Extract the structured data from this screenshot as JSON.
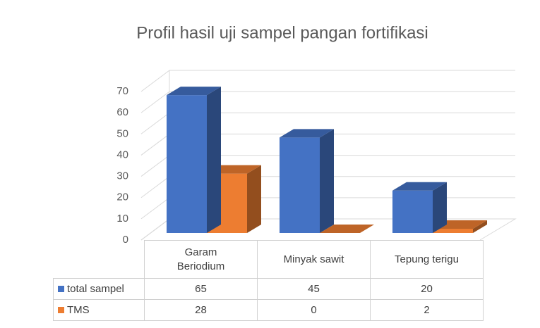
{
  "chart_data": {
    "type": "bar3d",
    "title": "Profil hasil uji sampel pangan fortifikasi",
    "categories": [
      "Garam Beriodium",
      "Minyak sawit",
      "Tepung terigu"
    ],
    "series": [
      {
        "name": "total sampel",
        "color": "#4472c4",
        "values": [
          65,
          45,
          20
        ]
      },
      {
        "name": "TMS",
        "color": "#ed7d31",
        "values": [
          28,
          0,
          2
        ]
      }
    ],
    "ylim": [
      0,
      70
    ],
    "yticks": [
      0,
      10,
      20,
      30,
      40,
      50,
      60,
      70
    ],
    "grid": true,
    "data_table": true
  }
}
